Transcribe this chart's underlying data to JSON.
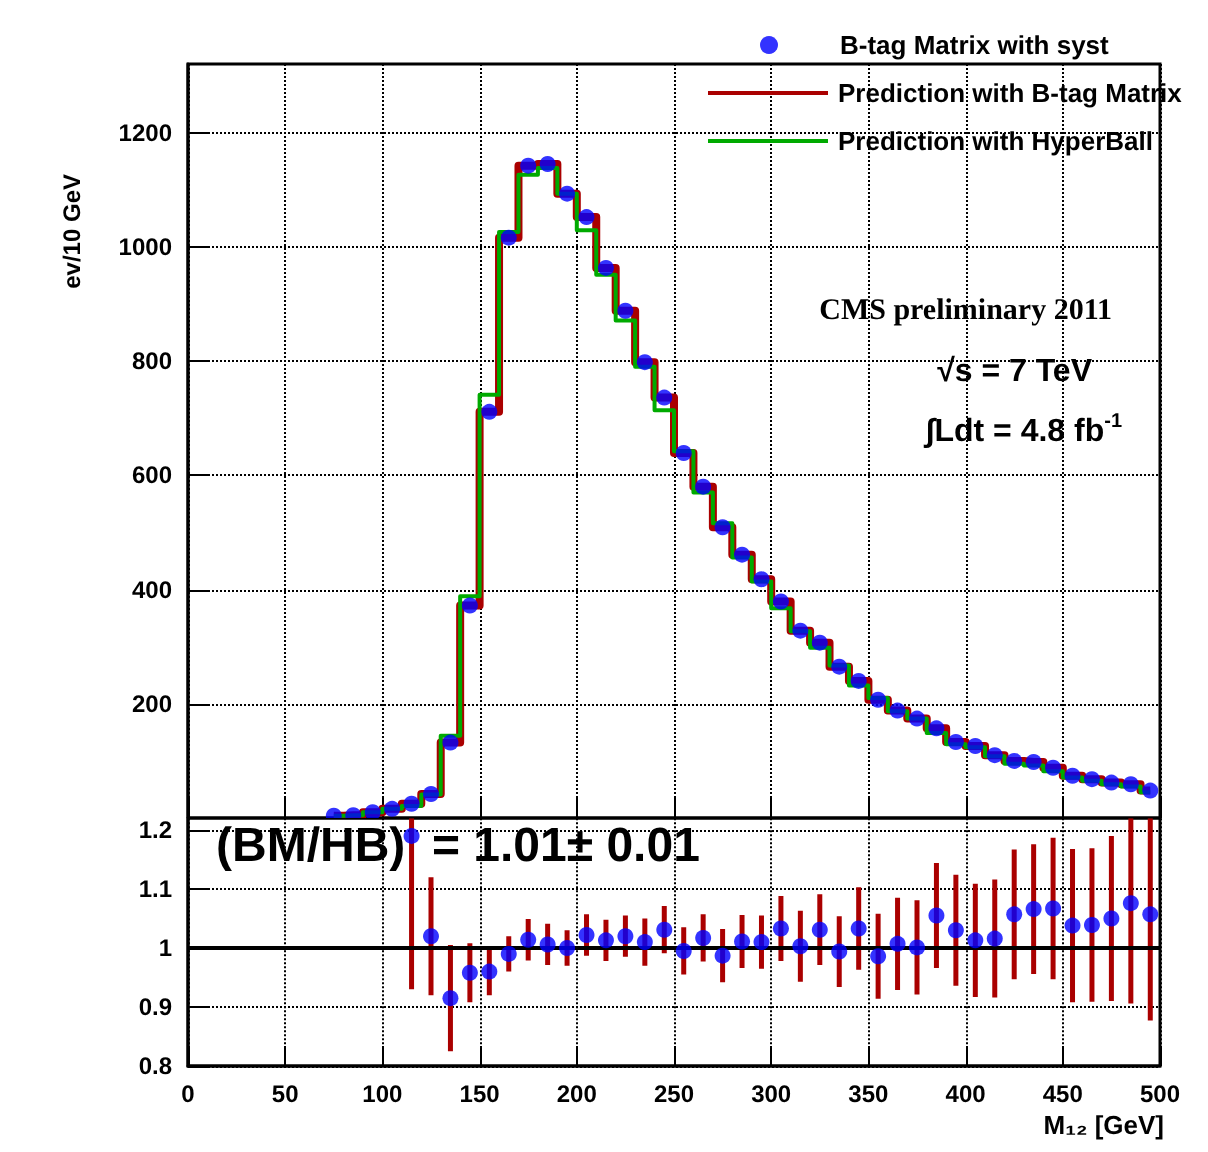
{
  "chart_data": [
    {
      "type": "line",
      "ylabel": "ev/10 GeV",
      "annotations": [
        "CMS preliminary 2011",
        "√s = 7 TeV",
        "∫Ldt = 4.8 fb$^{-1}$"
      ],
      "x": [
        75,
        85,
        95,
        105,
        115,
        125,
        135,
        145,
        155,
        165,
        175,
        185,
        195,
        205,
        215,
        225,
        235,
        245,
        255,
        265,
        275,
        285,
        295,
        305,
        315,
        325,
        335,
        345,
        355,
        365,
        375,
        385,
        395,
        405,
        415,
        425,
        435,
        445,
        455,
        465,
        475,
        485,
        495
      ],
      "series": [
        {
          "name": "B-tag Matrix with syst",
          "type": "scatter",
          "color": "#0000ff",
          "values": [
            4,
            5,
            10,
            16,
            25,
            42,
            132,
            372,
            711,
            1016,
            1142,
            1145,
            1093,
            1052,
            963,
            888,
            798,
            736,
            639,
            580,
            509,
            461,
            418,
            379,
            328,
            307,
            265,
            240,
            207,
            188,
            174,
            157,
            133,
            126,
            110,
            100,
            98,
            88,
            74,
            68,
            62,
            59,
            48
          ]
        },
        {
          "name": "Prediction with B-tag Matrix",
          "type": "step",
          "marker": "none",
          "color": "#aa0000",
          "values": [
            4,
            5,
            10,
            16,
            25,
            42,
            132,
            372,
            711,
            1016,
            1142,
            1145,
            1093,
            1052,
            963,
            888,
            798,
            736,
            639,
            580,
            509,
            461,
            418,
            379,
            328,
            307,
            265,
            240,
            207,
            188,
            174,
            157,
            133,
            126,
            110,
            100,
            98,
            88,
            74,
            68,
            62,
            59,
            48
          ]
        },
        {
          "name": "Prediction with HyperBall",
          "type": "step",
          "marker": "none",
          "color": "#00aa00",
          "values": [
            4,
            5,
            10,
            16,
            21,
            41,
            144,
            388,
            741,
            1026,
            1126,
            1138,
            1093,
            1029,
            951,
            871,
            790,
            714,
            642,
            570,
            516,
            456,
            414,
            367,
            327,
            298,
            267,
            232,
            210,
            187,
            174,
            149,
            129,
            124,
            108,
            95,
            92,
            82,
            71,
            65,
            59,
            55,
            45
          ]
        }
      ],
      "xlim": [
        0,
        500
      ],
      "xticks": [
        0,
        50,
        100,
        150,
        200,
        250,
        300,
        350,
        400,
        450,
        500
      ],
      "ylim": [
        0,
        1320
      ],
      "yticks": [
        200,
        400,
        600,
        800,
        1000,
        1200
      ],
      "grid": true,
      "legend": "top right",
      "tick_labels": "y",
      "marker": "circle"
    },
    {
      "type": "scatter",
      "xlabel": "M₁₂ [GeV]",
      "annotations": [
        "(BM/HB)  = 1.01± 0.01"
      ],
      "x": [
        115,
        125,
        135,
        145,
        155,
        165,
        175,
        185,
        195,
        205,
        215,
        225,
        235,
        245,
        255,
        265,
        275,
        285,
        295,
        305,
        315,
        325,
        335,
        345,
        355,
        365,
        375,
        385,
        395,
        405,
        415,
        425,
        435,
        445,
        455,
        465,
        475,
        485,
        495
      ],
      "series": [
        {
          "color": "#0000ff",
          "values": [
            1.19,
            1.02,
            0.915,
            0.958,
            0.96,
            0.99,
            1.014,
            1.006,
            1.0,
            1.022,
            1.013,
            1.02,
            1.01,
            1.031,
            0.995,
            1.017,
            0.987,
            1.011,
            1.01,
            1.033,
            1.003,
            1.031,
            0.994,
            1.033,
            0.986,
            1.007,
            1.001,
            1.055,
            1.03,
            1.013,
            1.016,
            1.057,
            1.066,
            1.067,
            1.038,
            1.039,
            1.05,
            1.076,
            1.057
          ],
          "errors": [
            [
              0.93,
              1.22
            ],
            0.1,
            0.09,
            0.05,
            0.04,
            0.03,
            0.035,
            0.035,
            0.03,
            0.035,
            0.035,
            0.035,
            0.04,
            0.04,
            0.04,
            0.04,
            0.045,
            0.045,
            0.045,
            0.055,
            0.06,
            0.06,
            0.06,
            0.07,
            0.072,
            0.078,
            0.08,
            0.089,
            0.094,
            0.096,
            0.1,
            0.11,
            0.11,
            0.12,
            0.13,
            0.13,
            0.14,
            [
              0.906,
              1.22
            ],
            [
              0.877,
              1.22
            ]
          ]
        }
      ],
      "ref_lines": [
        {
          "axis": "y",
          "value": 1,
          "color": "#000000"
        }
      ],
      "xlim": [
        0,
        500
      ],
      "xticks": [
        0,
        50,
        100,
        150,
        200,
        250,
        300,
        350,
        400,
        450,
        500
      ],
      "ylim": [
        0.8,
        1.22
      ],
      "yticks": [
        0.8,
        0.9,
        1,
        1.1,
        1.2
      ],
      "grid": true,
      "marker": "circle"
    }
  ]
}
